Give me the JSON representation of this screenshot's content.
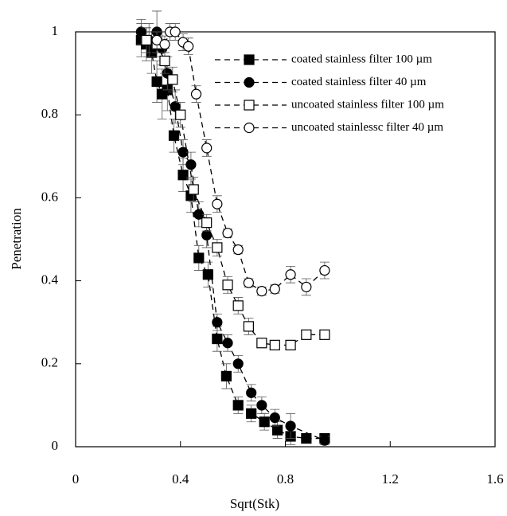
{
  "chart_data": {
    "type": "scatter",
    "xlabel": "Sqrt(Stk)",
    "ylabel": "Penetration",
    "xlim": [
      0,
      1.6
    ],
    "xticks": [
      0,
      0.4,
      0.8,
      1.2,
      1.6
    ],
    "ylim": [
      0,
      1
    ],
    "yticks": [
      0,
      0.2,
      0.4,
      0.6,
      0.8,
      1
    ],
    "line_style": "dashed",
    "series": [
      {
        "name": "coated stainless filter 100 µm",
        "color": "#000000",
        "marker": "square",
        "filled": true,
        "x": [
          0.25,
          0.27,
          0.29,
          0.31,
          0.33,
          0.35,
          0.375,
          0.41,
          0.44,
          0.47,
          0.505,
          0.54,
          0.575,
          0.62,
          0.67,
          0.72,
          0.77,
          0.82,
          0.88,
          0.95
        ],
        "values": [
          0.98,
          0.97,
          0.95,
          0.88,
          0.85,
          0.86,
          0.75,
          0.655,
          0.605,
          0.455,
          0.415,
          0.26,
          0.17,
          0.1,
          0.08,
          0.06,
          0.04,
          0.025,
          0.02,
          0.02
        ],
        "errors": [
          0.04,
          0.04,
          0.05,
          0.05,
          0.06,
          0.05,
          0.04,
          0.04,
          0.04,
          0.03,
          0.03,
          0.03,
          0.03,
          0.02,
          0.02,
          0.02,
          0.02,
          0.02,
          0.01,
          0.01
        ]
      },
      {
        "name": "coated stainless filter 40 µm",
        "color": "#000000",
        "marker": "circle",
        "filled": true,
        "x": [
          0.25,
          0.28,
          0.31,
          0.33,
          0.35,
          0.38,
          0.41,
          0.44,
          0.47,
          0.5,
          0.54,
          0.58,
          0.62,
          0.67,
          0.71,
          0.76,
          0.82,
          0.95
        ],
        "values": [
          1.0,
          0.98,
          1.0,
          0.96,
          0.9,
          0.82,
          0.71,
          0.68,
          0.56,
          0.51,
          0.3,
          0.25,
          0.2,
          0.13,
          0.1,
          0.07,
          0.05,
          0.015
        ],
        "errors": [
          0.03,
          0.04,
          0.05,
          0.04,
          0.04,
          0.04,
          0.03,
          0.03,
          0.03,
          0.03,
          0.02,
          0.02,
          0.02,
          0.02,
          0.02,
          0.02,
          0.03,
          0.01
        ]
      },
      {
        "name": "uncoated stainless filter 100 µm",
        "color": "#000000",
        "marker": "square",
        "filled": false,
        "x": [
          0.27,
          0.31,
          0.34,
          0.37,
          0.4,
          0.45,
          0.5,
          0.54,
          0.58,
          0.62,
          0.66,
          0.71,
          0.76,
          0.82,
          0.88,
          0.95
        ],
        "values": [
          0.98,
          0.97,
          0.93,
          0.885,
          0.8,
          0.62,
          0.54,
          0.48,
          0.39,
          0.34,
          0.29,
          0.25,
          0.245,
          0.245,
          0.27,
          0.27
        ],
        "errors": [
          0.03,
          0.03,
          0.03,
          0.03,
          0.03,
          0.03,
          0.02,
          0.02,
          0.02,
          0.02,
          0.02,
          0.01,
          0.01,
          0.01,
          0.01,
          0.01
        ]
      },
      {
        "name": "uncoated stainlessc filter 40 µm",
        "color": "#000000",
        "marker": "circle",
        "filled": false,
        "x": [
          0.31,
          0.34,
          0.36,
          0.38,
          0.41,
          0.43,
          0.46,
          0.5,
          0.54,
          0.58,
          0.62,
          0.66,
          0.71,
          0.76,
          0.82,
          0.88,
          0.95
        ],
        "values": [
          0.98,
          0.97,
          1.0,
          1.0,
          0.975,
          0.965,
          0.85,
          0.72,
          0.585,
          0.515,
          0.475,
          0.395,
          0.375,
          0.38,
          0.415,
          0.385,
          0.425
        ],
        "errors": [
          0.02,
          0.02,
          0.02,
          0.02,
          0.02,
          0.02,
          0.02,
          0.02,
          0.02,
          0.01,
          0.01,
          0.01,
          0.01,
          0.01,
          0.02,
          0.02,
          0.02
        ]
      }
    ]
  }
}
